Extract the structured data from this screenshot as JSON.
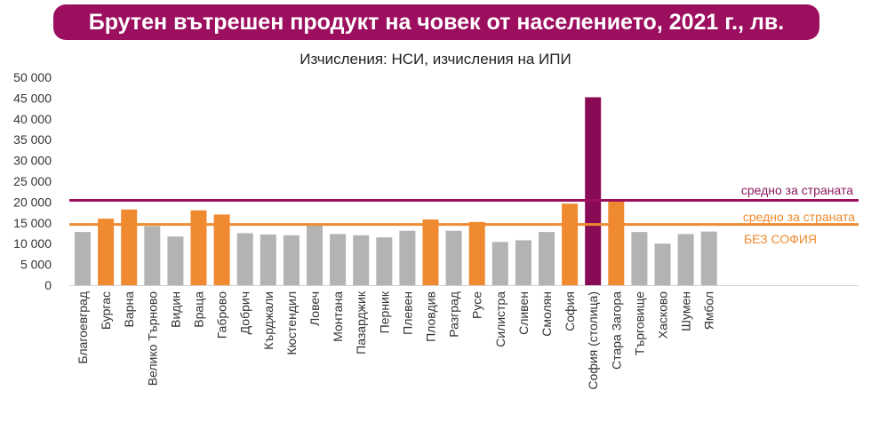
{
  "title": "Брутен вътрешен продукт на човек от населението, 2021 г., лв.",
  "subtitle": "Изчисления: НСИ, изчисления на ИПИ",
  "colors": {
    "title_bg": "#9c0f5f",
    "grey": "#b3b3b3",
    "orange": "#f08a30",
    "capital": "#8a0b55",
    "avg_line": "#9c0f5f",
    "avg_excl_line": "#f08a30",
    "avg_text": "#8a1a5e",
    "avg_excl_text": "#ef8a2e"
  },
  "chart_data": {
    "type": "bar",
    "ylim": [
      0,
      50000
    ],
    "yticks": [
      0,
      5000,
      10000,
      15000,
      20000,
      25000,
      30000,
      35000,
      40000,
      45000,
      50000
    ],
    "ytick_labels": [
      "0",
      "5 000",
      "10 000",
      "15 000",
      "20 000",
      "25 000",
      "30 000",
      "35 000",
      "40 000",
      "45 000",
      "50 000"
    ],
    "categories": [
      "Благоевград",
      "Бургас",
      "Варна",
      "Велико Търново",
      "Видин",
      "Враца",
      "Габрово",
      "Добрич",
      "Кърджали",
      "Кюстендил",
      "Ловеч",
      "Монтана",
      "Пазарджик",
      "Перник",
      "Плевен",
      "Пловдив",
      "Разград",
      "Русе",
      "Силистра",
      "Сливен",
      "Смолян",
      "София",
      "София (столица)",
      "Стара Загора",
      "Търговище",
      "Хасково",
      "Шумен",
      "Ямбол"
    ],
    "values": [
      12800,
      16000,
      18200,
      14200,
      11700,
      18000,
      17000,
      12500,
      12200,
      12000,
      14500,
      12300,
      12000,
      11500,
      13100,
      15800,
      13100,
      15200,
      10400,
      10800,
      12800,
      19600,
      45200,
      20300,
      12800,
      10000,
      12300,
      12900
    ],
    "bar_colors": [
      "grey",
      "orange",
      "orange",
      "grey",
      "grey",
      "orange",
      "orange",
      "grey",
      "grey",
      "grey",
      "grey",
      "grey",
      "grey",
      "grey",
      "grey",
      "orange",
      "grey",
      "orange",
      "grey",
      "grey",
      "grey",
      "orange",
      "capital",
      "orange",
      "grey",
      "grey",
      "grey",
      "grey"
    ],
    "reference_lines": [
      {
        "label": "средно за страната",
        "value": 20400,
        "color": "avg_line",
        "text_color": "avg_text"
      },
      {
        "label": "средно за страната",
        "label2": "БЕЗ СОФИЯ",
        "value": 14600,
        "color": "avg_excl_line",
        "text_color": "avg_excl_text"
      }
    ]
  }
}
